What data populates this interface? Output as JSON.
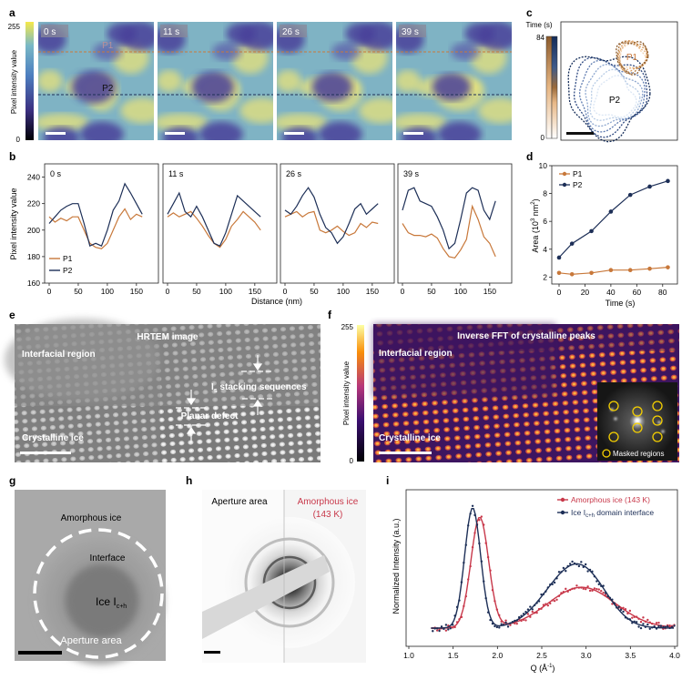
{
  "panels": {
    "a": {
      "letter": "a",
      "colorbar": {
        "max": "255",
        "min": "0",
        "label": "Pixel intensity value"
      },
      "frames": [
        {
          "time": "0 s",
          "p1": "P1",
          "p2": "P2"
        },
        {
          "time": "11 s"
        },
        {
          "time": "26 s"
        },
        {
          "time": "39 s"
        }
      ]
    },
    "b": {
      "letter": "b",
      "ylabel": "Pixel intensity value",
      "xlabel": "Distance (nm)",
      "yticks": [
        "240",
        "220",
        "200",
        "180",
        "160"
      ],
      "xticks": [
        "0",
        "50",
        "100",
        "150"
      ],
      "legend": [
        "P1",
        "P2"
      ]
    },
    "c": {
      "letter": "c",
      "colorbar_label": "Time (s)",
      "colorbar_max": "84",
      "colorbar_min": "0",
      "p1": "P1",
      "p2": "P2"
    },
    "d": {
      "letter": "d",
      "ylabel_main": "Area (10",
      "ylabel_sup": "3",
      "ylabel_unit": " nm",
      "ylabel_sup2": "2",
      "ylabel_end": ")",
      "xlabel": "Time (s)",
      "yticks": [
        "10",
        "8",
        "6",
        "4",
        "2"
      ],
      "xticks": [
        "0",
        "20",
        "40",
        "60",
        "80"
      ],
      "legend": [
        "P1",
        "P2"
      ]
    },
    "e": {
      "letter": "e",
      "title": "HRTEM image",
      "interfacial": "Interfacial region",
      "stacking_main": "I",
      "stacking_sub": "s",
      "stacking_rest": " stacking sequences",
      "planar": "Planar defect",
      "crystalline": "Crystalline ice"
    },
    "f": {
      "letter": "f",
      "title": "Inverse FFT of crystalline peaks",
      "interfacial": "Interfacial region",
      "crystalline": "Crystalline ice",
      "masked": "Masked regions",
      "colorbar_max": "255",
      "colorbar_min": "0",
      "colorbar_label": "Pixel intensity value"
    },
    "g": {
      "letter": "g",
      "amorphous": "Amorphous ice",
      "interface": "Interface",
      "ice_main": "Ice I",
      "ice_sub": "c+h",
      "aperture": "Aperture area"
    },
    "h": {
      "letter": "h",
      "aperture": "Aperture area",
      "amorphous": "Amorphous ice",
      "temp": "(143 K)"
    },
    "i": {
      "letter": "i",
      "ylabel": "Normalized Intensity (a.u.)",
      "xlabel_main": "Q (Å",
      "xlabel_sup": "-1",
      "xlabel_end": ")",
      "xticks": [
        "1.0",
        "1.5",
        "2.0",
        "2.5",
        "3.0",
        "3.5",
        "4.0"
      ],
      "legend_amorphous": "Amorphous ice (143 K)",
      "legend_ice_main": "Ice I",
      "legend_ice_sub": "c+h",
      "legend_ice_rest": " domain interface"
    }
  },
  "colors": {
    "p1": "#c8783a",
    "p2": "#1d2f57",
    "amorphous": "#c8384a",
    "ice": "#1d2f57"
  },
  "chart_data": [
    {
      "type": "line",
      "panel": "b",
      "subpanels": [
        "0 s",
        "11 s",
        "26 s",
        "39 s"
      ],
      "x_range": [
        0,
        180
      ],
      "ylim": [
        160,
        250
      ],
      "series": [
        {
          "name": "P1",
          "profiles": [
            [
              [
                0,
                210
              ],
              [
                10,
                206
              ],
              [
                20,
                209
              ],
              [
                30,
                207
              ],
              [
                40,
                210
              ],
              [
                50,
                210
              ],
              [
                60,
                200
              ],
              [
                70,
                190
              ],
              [
                80,
                187
              ],
              [
                90,
                186
              ],
              [
                100,
                190
              ],
              [
                110,
                200
              ],
              [
                120,
                210
              ],
              [
                130,
                216
              ],
              [
                140,
                208
              ],
              [
                150,
                212
              ],
              [
                160,
                210
              ]
            ],
            [
              [
                0,
                210
              ],
              [
                10,
                213
              ],
              [
                20,
                210
              ],
              [
                30,
                212
              ],
              [
                40,
                214
              ],
              [
                50,
                209
              ],
              [
                60,
                203
              ],
              [
                70,
                196
              ],
              [
                80,
                190
              ],
              [
                90,
                187
              ],
              [
                100,
                193
              ],
              [
                110,
                203
              ],
              [
                120,
                208
              ],
              [
                130,
                214
              ],
              [
                140,
                210
              ],
              [
                150,
                206
              ],
              [
                160,
                200
              ]
            ],
            [
              [
                0,
                210
              ],
              [
                10,
                212
              ],
              [
                20,
                214
              ],
              [
                30,
                210
              ],
              [
                40,
                213
              ],
              [
                50,
                214
              ],
              [
                60,
                200
              ],
              [
                70,
                198
              ],
              [
                80,
                200
              ],
              [
                90,
                203
              ],
              [
                100,
                199
              ],
              [
                110,
                196
              ],
              [
                120,
                198
              ],
              [
                130,
                205
              ],
              [
                140,
                202
              ],
              [
                150,
                206
              ],
              [
                160,
                205
              ]
            ],
            [
              [
                0,
                205
              ],
              [
                10,
                198
              ],
              [
                20,
                196
              ],
              [
                30,
                196
              ],
              [
                40,
                195
              ],
              [
                50,
                197
              ],
              [
                60,
                194
              ],
              [
                70,
                186
              ],
              [
                80,
                180
              ],
              [
                90,
                179
              ],
              [
                100,
                185
              ],
              [
                110,
                193
              ],
              [
                120,
                218
              ],
              [
                130,
                208
              ],
              [
                140,
                195
              ],
              [
                150,
                190
              ],
              [
                160,
                180
              ]
            ]
          ]
        },
        {
          "name": "P2",
          "profiles": [
            [
              [
                0,
                205
              ],
              [
                10,
                210
              ],
              [
                20,
                215
              ],
              [
                30,
                218
              ],
              [
                40,
                220
              ],
              [
                50,
                220
              ],
              [
                60,
                205
              ],
              [
                70,
                188
              ],
              [
                80,
                190
              ],
              [
                90,
                188
              ],
              [
                100,
                200
              ],
              [
                110,
                215
              ],
              [
                120,
                222
              ],
              [
                130,
                235
              ],
              [
                140,
                228
              ],
              [
                150,
                220
              ],
              [
                160,
                212
              ]
            ],
            [
              [
                0,
                212
              ],
              [
                10,
                220
              ],
              [
                20,
                228
              ],
              [
                30,
                214
              ],
              [
                40,
                210
              ],
              [
                50,
                218
              ],
              [
                60,
                210
              ],
              [
                70,
                200
              ],
              [
                80,
                190
              ],
              [
                90,
                188
              ],
              [
                100,
                198
              ],
              [
                110,
                212
              ],
              [
                120,
                226
              ],
              [
                130,
                222
              ],
              [
                140,
                218
              ],
              [
                150,
                214
              ],
              [
                160,
                210
              ]
            ],
            [
              [
                0,
                215
              ],
              [
                10,
                212
              ],
              [
                20,
                218
              ],
              [
                30,
                226
              ],
              [
                40,
                232
              ],
              [
                50,
                225
              ],
              [
                60,
                212
              ],
              [
                70,
                202
              ],
              [
                80,
                198
              ],
              [
                90,
                190
              ],
              [
                100,
                195
              ],
              [
                110,
                205
              ],
              [
                120,
                216
              ],
              [
                130,
                220
              ],
              [
                140,
                212
              ],
              [
                150,
                216
              ],
              [
                160,
                220
              ]
            ],
            [
              [
                0,
                215
              ],
              [
                10,
                230
              ],
              [
                20,
                232
              ],
              [
                30,
                222
              ],
              [
                40,
                220
              ],
              [
                50,
                218
              ],
              [
                60,
                210
              ],
              [
                70,
                200
              ],
              [
                80,
                186
              ],
              [
                90,
                190
              ],
              [
                100,
                208
              ],
              [
                110,
                228
              ],
              [
                120,
                232
              ],
              [
                130,
                230
              ],
              [
                140,
                215
              ],
              [
                150,
                208
              ],
              [
                160,
                222
              ]
            ]
          ]
        }
      ],
      "xlabel": "Distance (nm)",
      "ylabel": "Pixel intensity value"
    },
    {
      "type": "line",
      "panel": "d",
      "x": [
        0,
        10,
        25,
        40,
        55,
        70,
        84
      ],
      "series": [
        {
          "name": "P1",
          "values": [
            2.3,
            2.2,
            2.3,
            2.5,
            2.5,
            2.6,
            2.7
          ]
        },
        {
          "name": "P2",
          "values": [
            3.4,
            4.4,
            5.3,
            6.7,
            7.9,
            8.5,
            8.9
          ]
        }
      ],
      "xlim": [
        0,
        90
      ],
      "ylim": [
        1.5,
        10
      ],
      "xlabel": "Time (s)"
    },
    {
      "type": "scatter",
      "panel": "i",
      "xlim": [
        1.0,
        4.0
      ],
      "series": [
        {
          "name": "Amorphous ice (143 K)",
          "peaks": [
            [
              1.8,
              0.92,
              0.1
            ],
            [
              2.95,
              0.34,
              0.38
            ]
          ]
        },
        {
          "name": "Ice Ic+h domain interface",
          "peaks": [
            [
              1.72,
              1.0,
              0.09
            ],
            [
              2.78,
              0.38,
              0.3
            ],
            [
              3.05,
              0.22,
              0.25
            ]
          ]
        }
      ],
      "xlabel": "Q (Å-1)",
      "ylabel": "Normalized Intensity (a.u.)"
    }
  ]
}
